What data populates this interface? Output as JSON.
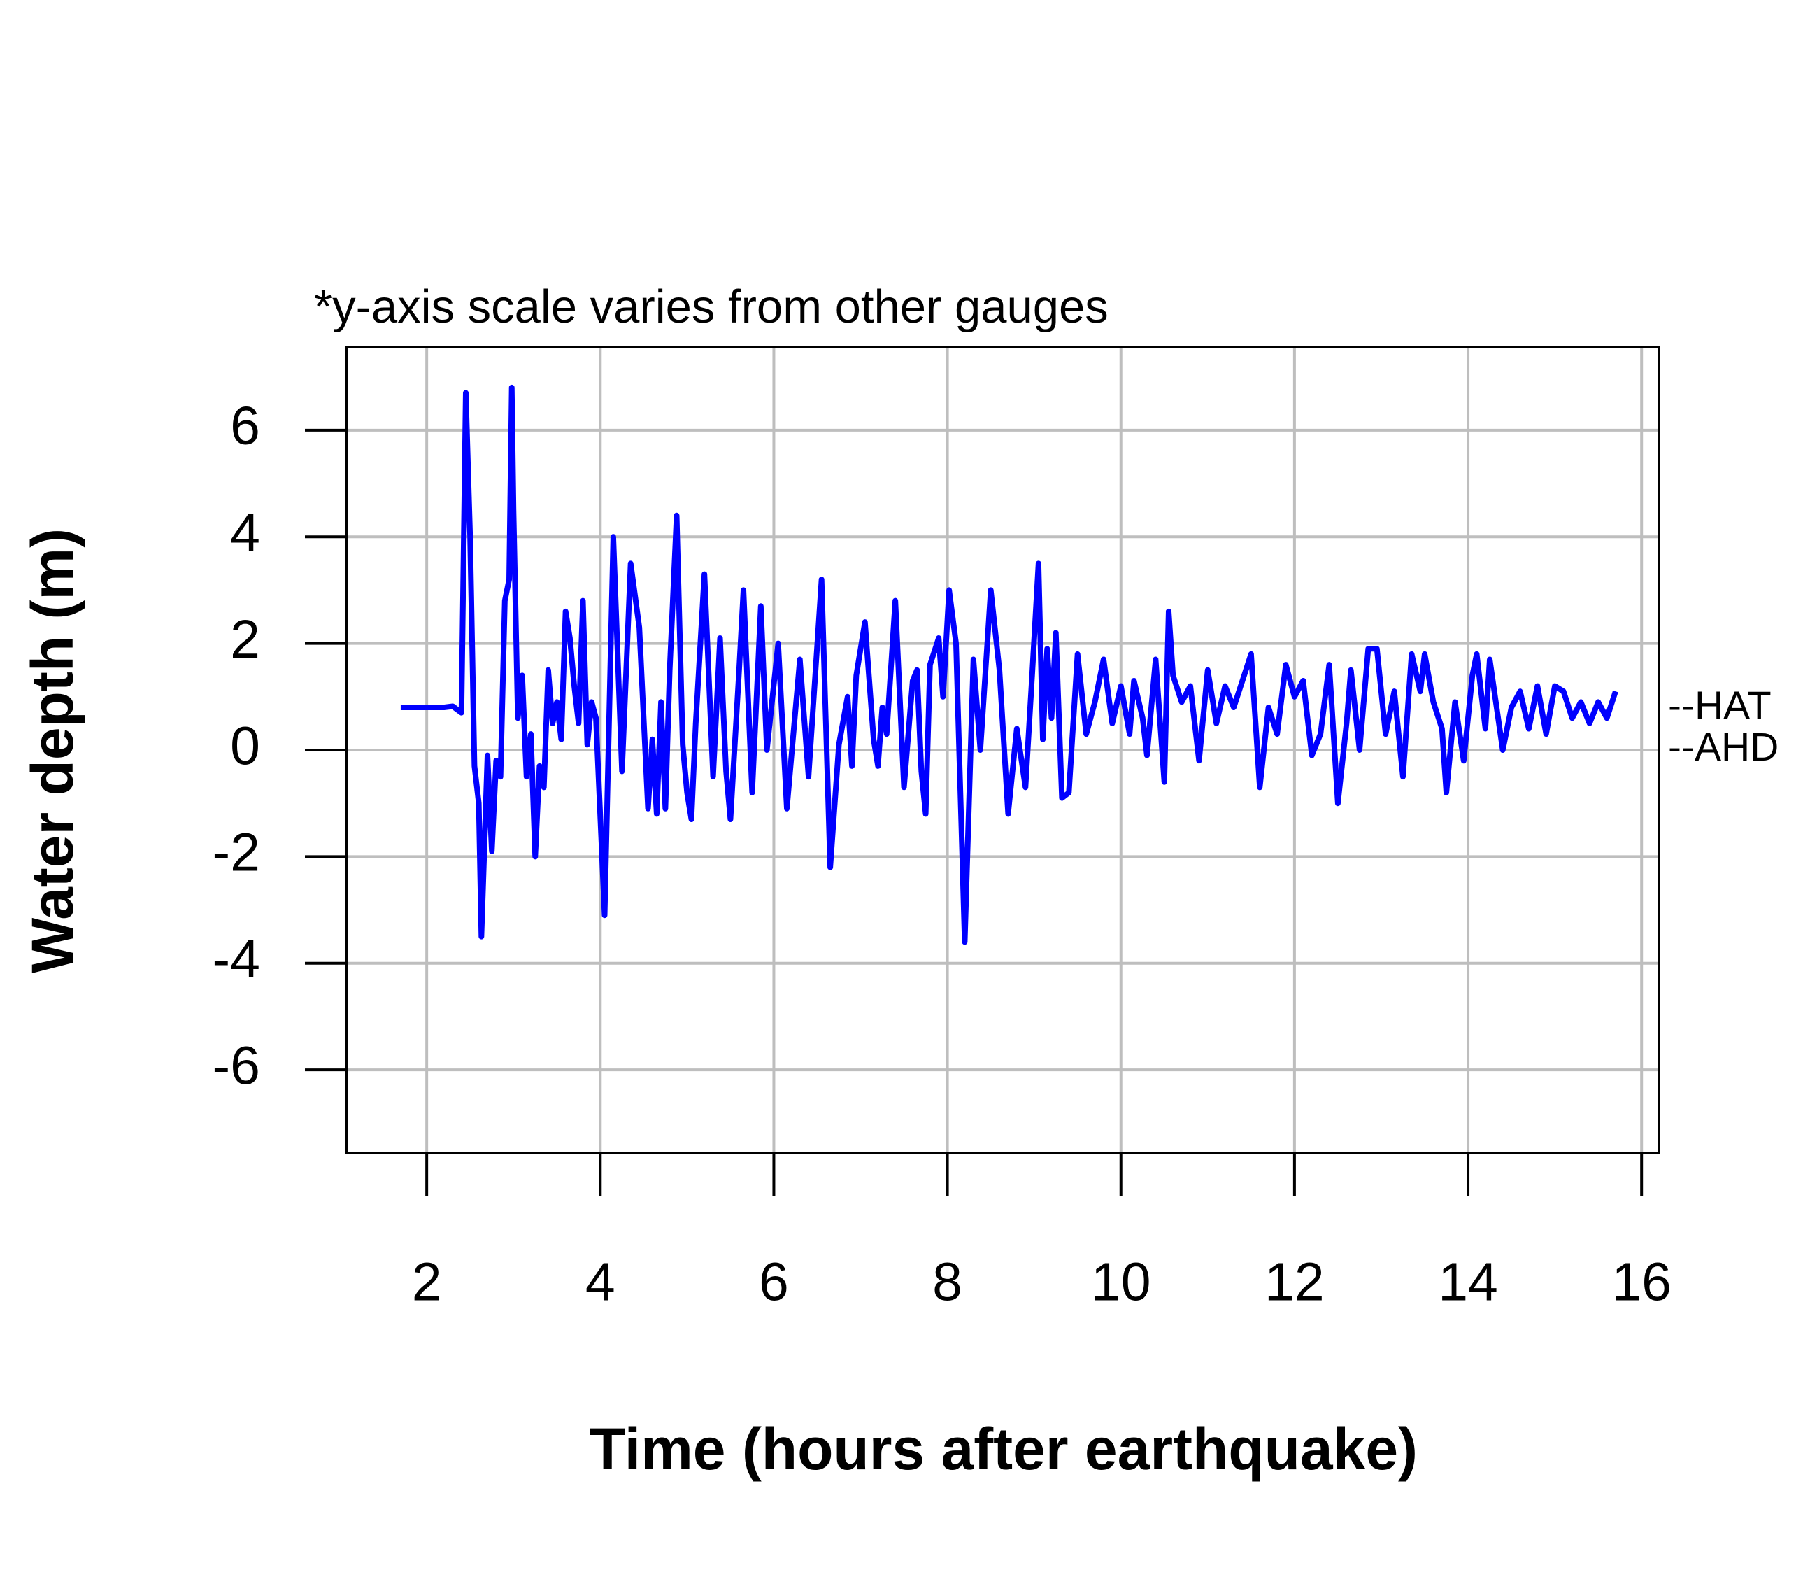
{
  "chart_data": {
    "type": "line",
    "title": "*y-axis scale varies from other gauges",
    "x_label": "Time (hours after earthquake)",
    "y_label": "Water depth (m)",
    "xlim": [
      1.08,
      16.2
    ],
    "ylim": [
      -7.56,
      7.56
    ],
    "xticks": [
      2,
      4,
      6,
      8,
      10,
      12,
      14,
      16
    ],
    "yticks": [
      -6,
      -4,
      -2,
      0,
      2,
      4,
      6
    ],
    "grid": true,
    "reference_levels": [
      {
        "label": "--HAT",
        "value": 0.78
      },
      {
        "label": "--AHD",
        "value": 0
      }
    ],
    "x": [
      1.7,
      2.0,
      2.2,
      2.3,
      2.4,
      2.45,
      2.5,
      2.55,
      2.6,
      2.63,
      2.7,
      2.75,
      2.8,
      2.85,
      2.9,
      2.95,
      2.98,
      3.0,
      3.05,
      3.1,
      3.15,
      3.2,
      3.25,
      3.3,
      3.35,
      3.4,
      3.45,
      3.5,
      3.55,
      3.6,
      3.65,
      3.7,
      3.75,
      3.8,
      3.85,
      3.9,
      3.95,
      4.05,
      4.15,
      4.25,
      4.35,
      4.45,
      4.55,
      4.6,
      4.65,
      4.7,
      4.75,
      4.8,
      4.88,
      4.95,
      5.0,
      5.05,
      5.1,
      5.2,
      5.3,
      5.38,
      5.45,
      5.5,
      5.6,
      5.65,
      5.75,
      5.85,
      5.92,
      6.05,
      6.15,
      6.3,
      6.4,
      6.55,
      6.65,
      6.75,
      6.85,
      6.9,
      6.95,
      7.05,
      7.15,
      7.2,
      7.25,
      7.3,
      7.4,
      7.5,
      7.6,
      7.65,
      7.7,
      7.75,
      7.8,
      7.9,
      7.95,
      8.02,
      8.1,
      8.2,
      8.3,
      8.38,
      8.5,
      8.6,
      8.7,
      8.8,
      8.9,
      8.98,
      9.05,
      9.1,
      9.15,
      9.2,
      9.25,
      9.32,
      9.4,
      9.5,
      9.6,
      9.7,
      9.8,
      9.9,
      10.0,
      10.1,
      10.15,
      10.25,
      10.3,
      10.4,
      10.5,
      10.55,
      10.6,
      10.7,
      10.8,
      10.9,
      11.0,
      11.1,
      11.2,
      11.3,
      11.4,
      11.5,
      11.6,
      11.7,
      11.8,
      11.9,
      12.0,
      12.1,
      12.2,
      12.3,
      12.4,
      12.5,
      12.6,
      12.65,
      12.75,
      12.85,
      12.95,
      13.05,
      13.15,
      13.25,
      13.35,
      13.45,
      13.5,
      13.6,
      13.7,
      13.75,
      13.85,
      13.95,
      14.05,
      14.1,
      14.2,
      14.25,
      14.4,
      14.5,
      14.6,
      14.7,
      14.8,
      14.9,
      15.0,
      15.1,
      15.2,
      15.3,
      15.4,
      15.5,
      15.6,
      15.7
    ],
    "series": [
      {
        "name": "Water depth",
        "color": "#0000ff",
        "values": [
          0.8,
          0.8,
          0.8,
          0.82,
          0.7,
          6.7,
          4,
          -0.3,
          -1,
          -3.5,
          -0.1,
          -1.9,
          -0.2,
          -0.5,
          2.8,
          3.2,
          6.8,
          4.5,
          0.6,
          1.4,
          -0.5,
          0.3,
          -2.0,
          -0.3,
          -0.7,
          1.5,
          0.5,
          0.9,
          0.2,
          2.6,
          2.1,
          1.2,
          0.5,
          2.8,
          0.1,
          0.9,
          0.6,
          -3.1,
          4.0,
          -0.4,
          3.5,
          2.3,
          -1.1,
          0.2,
          -1.2,
          0.9,
          -1.1,
          1.5,
          4.4,
          0.1,
          -0.8,
          -1.3,
          0.5,
          3.3,
          -0.5,
          2.1,
          -0.4,
          -1.3,
          1.5,
          3.0,
          -0.8,
          2.7,
          0.0,
          2.0,
          -1.1,
          1.7,
          -0.5,
          3.2,
          -2.2,
          0.1,
          1.0,
          -0.3,
          1.4,
          2.4,
          0.2,
          -0.3,
          0.8,
          0.3,
          2.8,
          -0.7,
          1.3,
          1.5,
          -0.4,
          -1.2,
          1.6,
          2.1,
          1.0,
          3.0,
          2.0,
          -3.6,
          1.7,
          0.0,
          3.0,
          1.5,
          -1.2,
          0.4,
          -0.7,
          1.5,
          3.5,
          0.2,
          1.9,
          0.6,
          2.2,
          -0.9,
          -0.8,
          1.8,
          0.3,
          0.9,
          1.7,
          0.5,
          1.2,
          0.3,
          1.3,
          0.6,
          -0.1,
          1.7,
          -0.6,
          2.6,
          1.4,
          0.9,
          1.2,
          -0.2,
          1.5,
          0.5,
          1.2,
          0.8,
          1.3,
          1.8,
          -0.7,
          0.8,
          0.3,
          1.6,
          1.0,
          1.3,
          -0.1,
          0.3,
          1.6,
          -1.0,
          0.5,
          1.5,
          0.0,
          1.9,
          1.9,
          0.3,
          1.1,
          -0.5,
          1.8,
          1.1,
          1.8,
          0.9,
          0.4,
          -0.8,
          0.9,
          -0.2,
          1.4,
          1.8,
          0.4,
          1.7,
          0.0,
          0.8,
          1.1,
          0.4,
          1.2,
          0.3,
          1.2,
          1.1,
          0.6,
          0.9,
          0.5,
          0.9,
          0.6,
          1.1
        ]
      }
    ]
  }
}
